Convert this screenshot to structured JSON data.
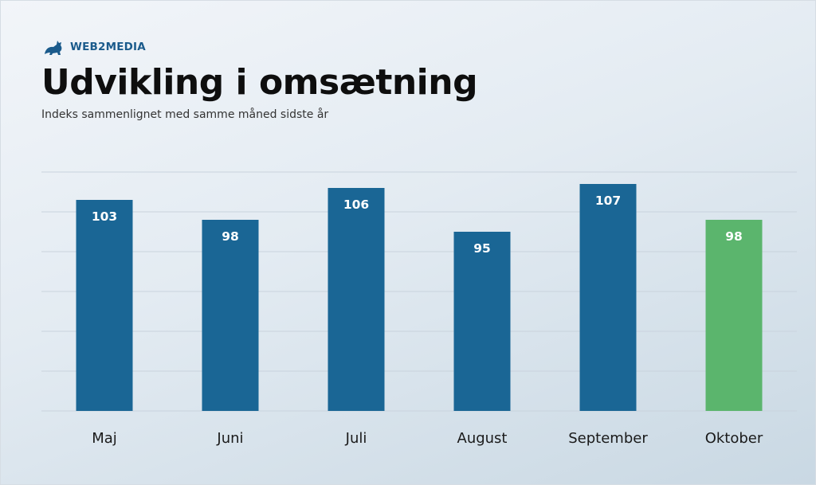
{
  "brand": {
    "name": "WEB2MEDIA",
    "logo_icon": "cat-icon",
    "color": "#1b5b8c"
  },
  "chart_data": {
    "type": "bar",
    "title": "Udvikling i omsætning",
    "subtitle": "Indeks sammenlignet med samme måned sidste år",
    "categories": [
      "Maj",
      "Juni",
      "Juli",
      "August",
      "September",
      "Oktober"
    ],
    "values": [
      103,
      98,
      106,
      95,
      107,
      98
    ],
    "value_labels": [
      "103",
      "98",
      "106",
      "95",
      "107",
      "98"
    ],
    "bar_colors": [
      "#1a6695",
      "#1a6695",
      "#1a6695",
      "#1a6695",
      "#1a6695",
      "#5bb56d"
    ],
    "ylim": [
      50,
      110
    ],
    "grid": true,
    "xlabel": "",
    "ylabel": ""
  }
}
